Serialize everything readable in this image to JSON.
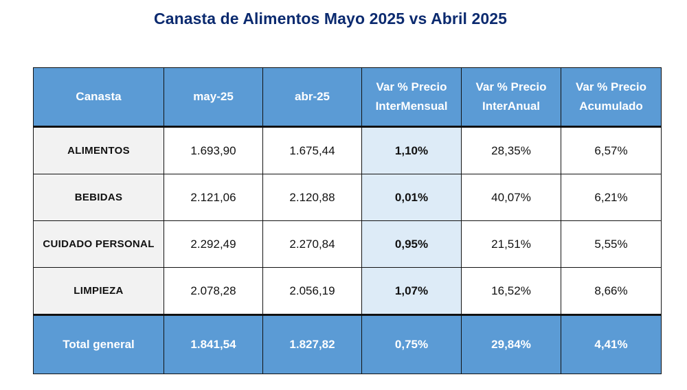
{
  "title": "Canasta de Alimentos Mayo 2025 vs Abril 2025",
  "table": {
    "headers": {
      "canasta": "Canasta",
      "may": "may-25",
      "abr": "abr-25",
      "var_mensual_line1": "Var % Precio",
      "var_mensual_line2": "InterMensual",
      "var_anual_line1": "Var % Precio",
      "var_anual_line2": "InterAnual",
      "var_acum_line1": "Var % Precio",
      "var_acum_line2": "Acumulado"
    },
    "rows": [
      {
        "canasta": "ALIMENTOS",
        "may": "1.693,90",
        "abr": "1.675,44",
        "var_mensual": "1,10%",
        "var_anual": "28,35%",
        "var_acum": "6,57%"
      },
      {
        "canasta": "BEBIDAS",
        "may": "2.121,06",
        "abr": "2.120,88",
        "var_mensual": "0,01%",
        "var_anual": "40,07%",
        "var_acum": "6,21%"
      },
      {
        "canasta": "CUIDADO PERSONAL",
        "may": "2.292,49",
        "abr": "2.270,84",
        "var_mensual": "0,95%",
        "var_anual": "21,51%",
        "var_acum": "5,55%"
      },
      {
        "canasta": "LIMPIEZA",
        "may": "2.078,28",
        "abr": "2.056,19",
        "var_mensual": "1,07%",
        "var_anual": "16,52%",
        "var_acum": "8,66%"
      }
    ],
    "total": {
      "canasta": "Total general",
      "may": "1.841,54",
      "abr": "1.827,82",
      "var_mensual": "0,75%",
      "var_anual": "29,84%",
      "var_acum": "4,41%"
    }
  },
  "colors": {
    "title": "#0b2a6f",
    "header_bg": "#5b9bd5",
    "row_label_bg": "#f2f2f2",
    "mensual_highlight_bg": "#ddebf7",
    "border": "#111111"
  }
}
